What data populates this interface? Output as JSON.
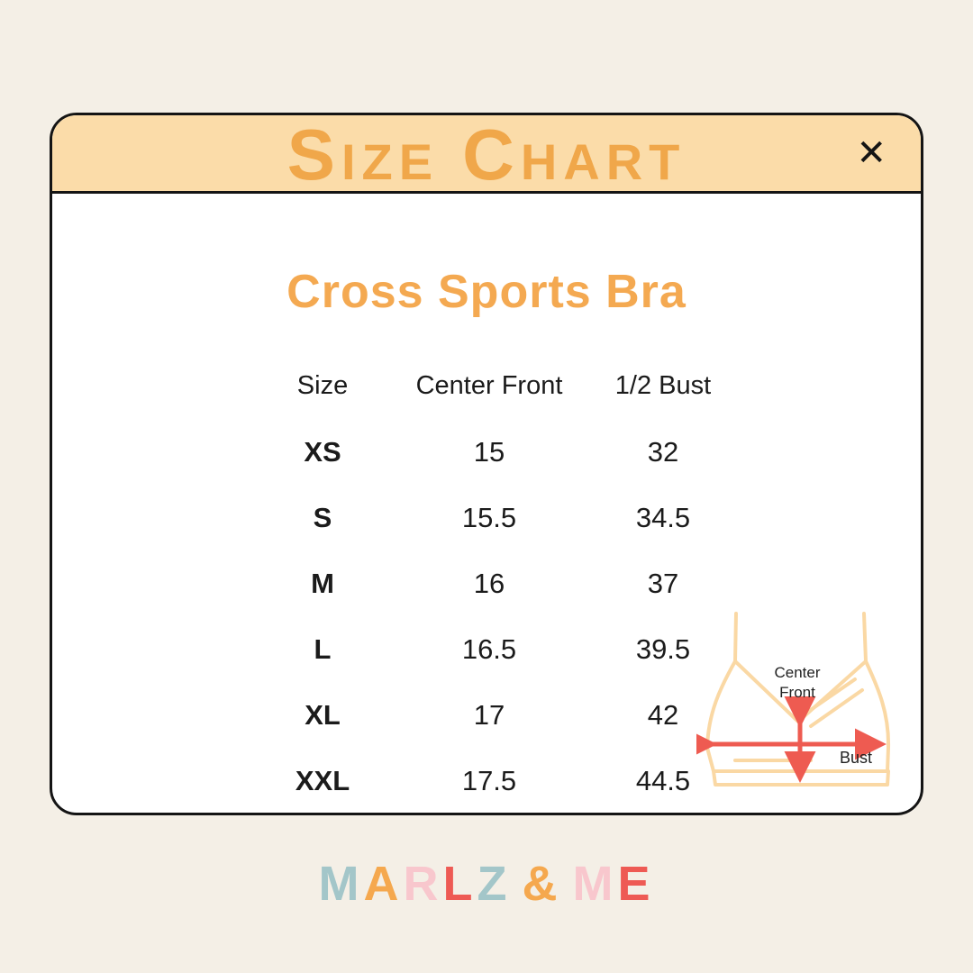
{
  "page": {
    "background": "#F4EFE6"
  },
  "modal": {
    "header": {
      "title_word1": "SIZE",
      "title_word2": "CHART",
      "close_icon": "✕",
      "background": "#FBDCA9",
      "title_color": "#F0A74A"
    },
    "product_title": "Cross Sports Bra",
    "table": {
      "columns": [
        "Size",
        "Center Front",
        "1/2 Bust"
      ],
      "rows": [
        {
          "size": "XS",
          "center_front": "15",
          "half_bust": "32"
        },
        {
          "size": "S",
          "center_front": "15.5",
          "half_bust": "34.5"
        },
        {
          "size": "M",
          "center_front": "16",
          "half_bust": "37"
        },
        {
          "size": "L",
          "center_front": "16.5",
          "half_bust": "39.5"
        },
        {
          "size": "XL",
          "center_front": "17",
          "half_bust": "42"
        },
        {
          "size": "XXL",
          "center_front": "17.5",
          "half_bust": "44.5"
        }
      ]
    },
    "diagram": {
      "label_center_front_line1": "Center",
      "label_center_front_line2": "Front",
      "label_bust": "Bust",
      "outline_color": "#FAD8A4",
      "arrow_color": "#EE5B51"
    }
  },
  "footer": {
    "brand_letters": [
      {
        "char": "M",
        "color": "#A3C6C9"
      },
      {
        "char": "A",
        "color": "#F5A84E"
      },
      {
        "char": "R",
        "color": "#F8C7CD"
      },
      {
        "char": "L",
        "color": "#EE5A54"
      },
      {
        "char": "Z",
        "color": "#A3C6C9"
      },
      {
        "char": "&",
        "color": "#F5A84E"
      },
      {
        "char": "M",
        "color": "#F8C7CD"
      },
      {
        "char": "E",
        "color": "#EE5A54"
      }
    ]
  }
}
